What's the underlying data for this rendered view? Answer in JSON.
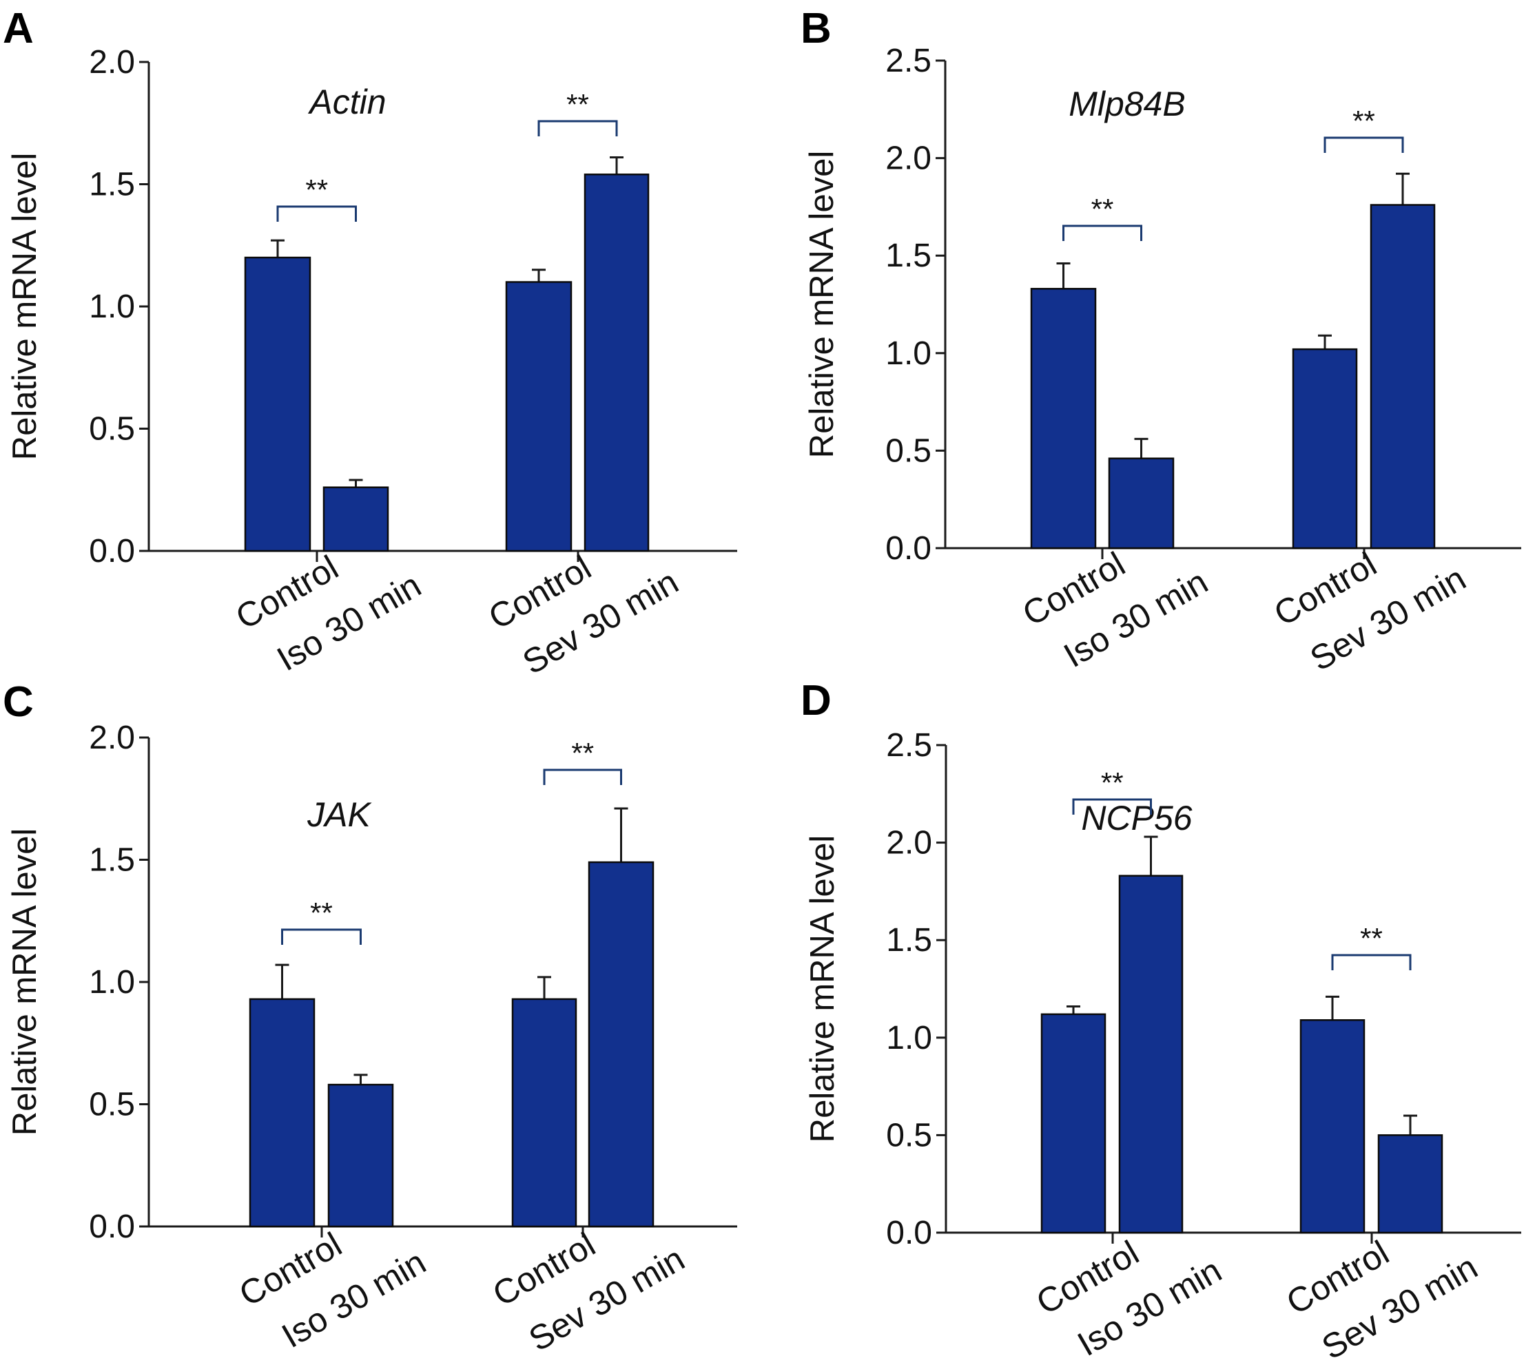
{
  "figure": {
    "bar_color": "#12318e",
    "bracket_color": "#1a3a70",
    "axis_color": "#1a1a1a"
  },
  "chart_data": [
    {
      "panel": "A",
      "type": "bar",
      "title": "Actin",
      "ylabel": "Relative mRNA level",
      "ylim": [
        0,
        2.0
      ],
      "yticks": [
        "0.0",
        "0.5",
        "1.0",
        "1.5",
        "2.0"
      ],
      "groups": [
        {
          "labels": [
            "Control",
            "Iso 30 min"
          ],
          "values": [
            1.2,
            0.26
          ],
          "errors": [
            0.07,
            0.03
          ],
          "significance": "**"
        },
        {
          "labels": [
            "Control",
            "Sev 30 min"
          ],
          "values": [
            1.1,
            1.54
          ],
          "errors": [
            0.05,
            0.07
          ],
          "significance": "**"
        }
      ]
    },
    {
      "panel": "B",
      "type": "bar",
      "title": "Mlp84B",
      "ylabel": "Relative mRNA level",
      "ylim": [
        0,
        2.5
      ],
      "yticks": [
        "0.0",
        "0.5",
        "1.0",
        "1.5",
        "2.0",
        "2.5"
      ],
      "groups": [
        {
          "labels": [
            "Control",
            "Iso 30 min"
          ],
          "values": [
            1.33,
            0.46
          ],
          "errors": [
            0.13,
            0.1
          ],
          "significance": "**"
        },
        {
          "labels": [
            "Control",
            "Sev 30 min"
          ],
          "values": [
            1.02,
            1.76
          ],
          "errors": [
            0.07,
            0.16
          ],
          "significance": "**"
        }
      ]
    },
    {
      "panel": "C",
      "type": "bar",
      "title": "JAK",
      "ylabel": "Relative mRNA level",
      "ylim": [
        0,
        2.0
      ],
      "yticks": [
        "0.0",
        "0.5",
        "1.0",
        "1.5",
        "2.0"
      ],
      "groups": [
        {
          "labels": [
            "Control",
            "Iso 30 min"
          ],
          "values": [
            0.93,
            0.58
          ],
          "errors": [
            0.14,
            0.04
          ],
          "significance": "**"
        },
        {
          "labels": [
            "Control",
            "Sev 30 min"
          ],
          "values": [
            0.93,
            1.49
          ],
          "errors": [
            0.09,
            0.22
          ],
          "significance": "**"
        }
      ]
    },
    {
      "panel": "D",
      "type": "bar",
      "title": "NCP56",
      "ylabel": "Relative mRNA level",
      "ylim": [
        0,
        2.5
      ],
      "yticks": [
        "0.0",
        "0.5",
        "1.0",
        "1.5",
        "2.0",
        "2.5"
      ],
      "groups": [
        {
          "labels": [
            "Control",
            "Iso 30 min"
          ],
          "values": [
            1.12,
            1.83
          ],
          "errors": [
            0.04,
            0.2
          ],
          "significance": "**"
        },
        {
          "labels": [
            "Control",
            "Sev 30 min"
          ],
          "values": [
            1.09,
            0.5
          ],
          "errors": [
            0.12,
            0.1
          ],
          "significance": "**"
        }
      ]
    }
  ]
}
